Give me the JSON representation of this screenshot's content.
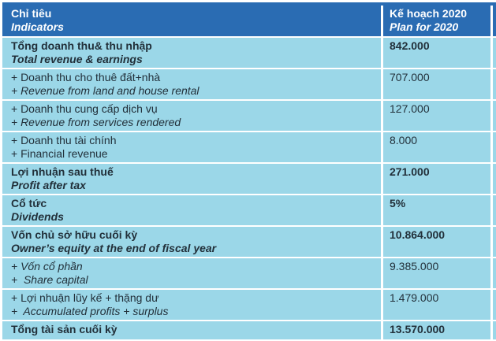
{
  "colors": {
    "header_bg": "#2a6cb3",
    "row_bg": "#9bd7e8",
    "divider": "#ffffff",
    "text": "#22303a",
    "header_text": "#ffffff",
    "page_bg": "#ffffff"
  },
  "table": {
    "header": {
      "indicator_vi": "Chỉ tiêu",
      "indicator_en": "Indicators",
      "plan_vi": "Kế hoạch 2020",
      "plan_en": "Plan for 2020"
    },
    "rows": [
      {
        "vi": "Tổng doanh thu& thu nhập",
        "en": "Total revenue & earnings",
        "value": "842.000",
        "bold": true,
        "vi_italic": false,
        "en_italic": true
      },
      {
        "vi": "+ Doanh thu cho thuê đất+nhà",
        "en": "+ Revenue from land and house rental",
        "value": "707.000",
        "bold": false,
        "vi_italic": false,
        "en_italic": true
      },
      {
        "vi": "+ Doanh thu cung cấp dịch vụ",
        "en": "+ Revenue from services rendered",
        "value": "127.000",
        "bold": false,
        "vi_italic": false,
        "en_italic": true
      },
      {
        "vi": "+ Doanh thu tài chính",
        "en": "+ Financial revenue",
        "value": "8.000",
        "bold": false,
        "vi_italic": false,
        "en_italic": false
      },
      {
        "vi": "Lợi nhuận sau thuế",
        "en": "Profit after tax",
        "value": "271.000",
        "bold": true,
        "vi_italic": false,
        "en_italic": true
      },
      {
        "vi": "Cổ tức",
        "en": "Dividends",
        "value": "5%",
        "bold": true,
        "vi_italic": false,
        "en_italic": true
      },
      {
        "vi": "Vốn chủ sở hữu cuối kỳ",
        "en": "Owner’s equity at the end of fiscal year",
        "value": "10.864.000",
        "bold": true,
        "vi_italic": false,
        "en_italic": true
      },
      {
        "vi": "+ Vốn cổ phần",
        "en": "+  Share capital",
        "value": "9.385.000",
        "bold": false,
        "vi_italic": true,
        "en_italic": true
      },
      {
        "vi": "+ Lợi nhuận lũy kế + thặng dư",
        "en": "+  Accumulated profits + surplus",
        "value": "1.479.000",
        "bold": false,
        "vi_italic": false,
        "en_italic": true
      },
      {
        "vi": "Tổng tài sản cuối kỳ",
        "en": "",
        "value": "13.570.000",
        "bold": true,
        "vi_italic": false,
        "en_italic": false
      }
    ]
  }
}
